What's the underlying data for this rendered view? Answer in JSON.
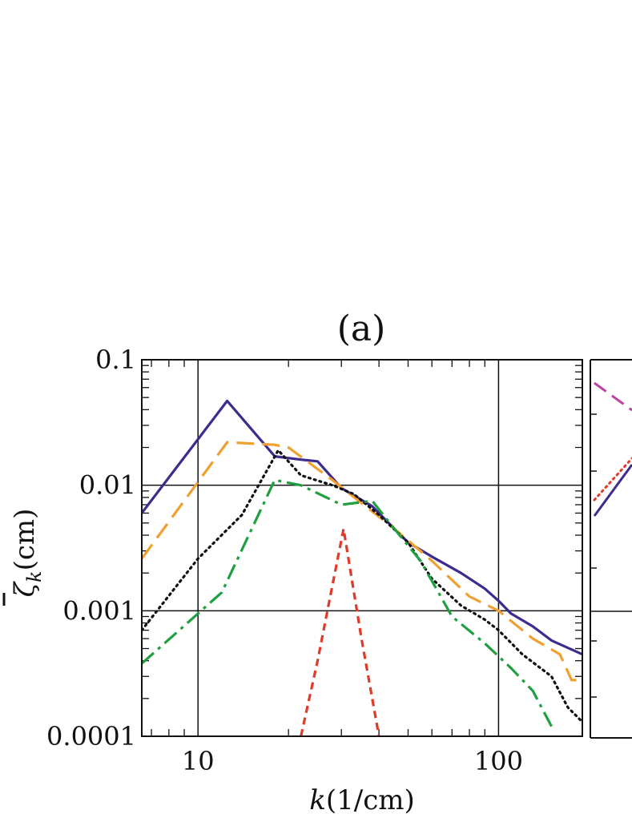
{
  "chart_data": [
    {
      "type": "line",
      "title": "(a)",
      "xlabel_var": "k",
      "xlabel_unit": "(1/cm)",
      "ylabel_var": "ζ",
      "ylabel_sub": "k",
      "ylabel_unit": "(cm)",
      "xscale": "log",
      "yscale": "log",
      "xlim": [
        6.5,
        190
      ],
      "ylim": [
        0.0001,
        0.1
      ],
      "xticks": [
        {
          "value": 10,
          "label": "10"
        },
        {
          "value": 100,
          "label": "100"
        }
      ],
      "yticks": [
        {
          "value": 0.1,
          "label": "0.1"
        },
        {
          "value": 0.01,
          "label": "0.01"
        },
        {
          "value": 0.001,
          "label": "0.001"
        },
        {
          "value": 0.0001,
          "label": "0.0001"
        }
      ],
      "grid": true,
      "series": [
        {
          "color": "#3d2b8e",
          "style": "solid",
          "x": [
            6.5,
            12.5,
            18,
            22,
            25,
            30,
            38,
            45,
            50,
            60,
            75,
            90,
            100,
            110,
            130,
            150,
            190
          ],
          "y": [
            0.006,
            0.047,
            0.017,
            0.016,
            0.0155,
            0.0095,
            0.0068,
            0.0045,
            0.0035,
            0.0027,
            0.002,
            0.0015,
            0.0012,
            0.00095,
            0.00075,
            0.00058,
            0.00045
          ]
        },
        {
          "color": "#f0a030",
          "style": "dashed",
          "x": [
            6.5,
            12.5,
            18,
            20,
            28,
            35,
            45,
            60,
            80,
            100,
            130,
            160,
            175,
            190
          ],
          "y": [
            0.0026,
            0.022,
            0.021,
            0.02,
            0.011,
            0.0072,
            0.0045,
            0.0025,
            0.0013,
            0.001,
            0.0006,
            0.00045,
            0.00028,
            0.00028
          ]
        },
        {
          "color": "#111111",
          "style": "dotted",
          "x": [
            6.5,
            10,
            14,
            18.5,
            22,
            28,
            33,
            40,
            50,
            60,
            75,
            90,
            100,
            120,
            150,
            170,
            190
          ],
          "y": [
            0.0007,
            0.0026,
            0.0058,
            0.019,
            0.012,
            0.01,
            0.0085,
            0.0058,
            0.0035,
            0.0018,
            0.0011,
            0.00085,
            0.0007,
            0.00045,
            0.0003,
            0.00017,
            0.00013
          ]
        },
        {
          "color": "#1fa040",
          "style": "dashdot",
          "x": [
            6.5,
            12,
            18,
            22,
            30,
            38,
            45,
            55,
            70,
            90,
            110,
            130,
            150
          ],
          "y": [
            0.00038,
            0.0014,
            0.011,
            0.01,
            0.007,
            0.0075,
            0.0045,
            0.0025,
            0.0009,
            0.00055,
            0.00035,
            0.00023,
            0.00012
          ]
        },
        {
          "color": "#e03a2a",
          "style": "shortdash",
          "x": [
            22,
            25,
            30.5,
            35,
            40
          ],
          "y": [
            0.0001,
            0.0004,
            0.0045,
            0.0006,
            0.0001
          ]
        }
      ]
    },
    {
      "type": "line",
      "partial": true,
      "series": [
        {
          "color": "#c040a0",
          "style": "dashed"
        },
        {
          "color": "#e03a2a",
          "style": "dotted"
        },
        {
          "color": "#3d2b8e",
          "style": "solid"
        }
      ]
    }
  ]
}
